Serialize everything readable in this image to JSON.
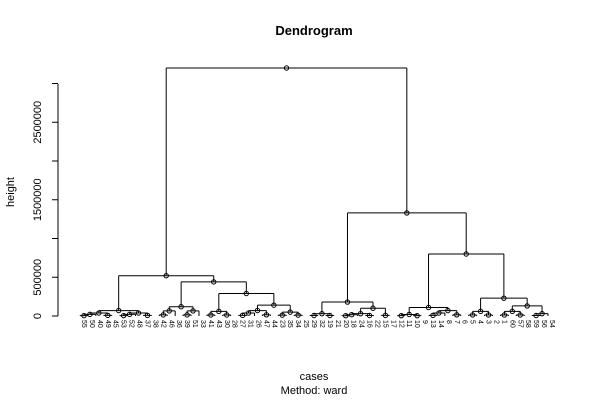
{
  "chart_data": {
    "type": "dendrogram",
    "title": "Dendrogram",
    "xlabel": "cases",
    "ylabel": "height",
    "subtitle": "Method:  ward",
    "ylim": [
      0,
      3200000
    ],
    "yticks": [
      0,
      500000,
      1500000,
      2500000
    ],
    "ytick_labels": [
      "0",
      "500000",
      "1500000",
      "2500000"
    ],
    "leaf_labels": [
      "55",
      "50",
      "40",
      "49",
      "45",
      "53",
      "52",
      "48",
      "37",
      "38",
      "42",
      "46",
      "36",
      "39",
      "51",
      "33",
      "41",
      "43",
      "30",
      "28",
      "27",
      "31",
      "26",
      "47",
      "44",
      "23",
      "35",
      "34",
      "25",
      "29",
      "32",
      "19",
      "21",
      "20",
      "18",
      "24",
      "16",
      "22",
      "15",
      "17",
      "12",
      "11",
      "10",
      "9",
      "13",
      "14",
      "8",
      "7",
      "6",
      "5",
      "4",
      "3",
      "2",
      "1",
      "60",
      "57",
      "58",
      "59",
      "56",
      "54"
    ],
    "merges": [
      {
        "height": 3200000
      },
      {
        "height": 1330000
      },
      {
        "height": 800000
      },
      {
        "height": 520000
      },
      {
        "height": 440000
      },
      {
        "height": 290000
      },
      {
        "height": 230000
      },
      {
        "height": 180000
      },
      {
        "height": 140000
      },
      {
        "height": 130000
      },
      {
        "height": 110000
      },
      {
        "height": 100000
      },
      {
        "height": 90000
      }
    ]
  }
}
